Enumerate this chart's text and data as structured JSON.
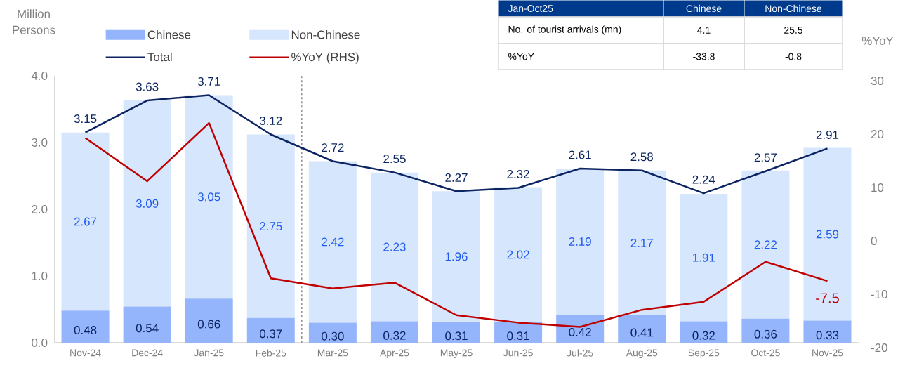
{
  "chart_data": {
    "type": "bar",
    "stacked": true,
    "ylabel": "Million Persons",
    "y2label": "%YoY",
    "categories": [
      "Nov-24",
      "Dec-24",
      "Jan-25",
      "Feb-25",
      "Mar-25",
      "Apr-25",
      "May-25",
      "Jun-25",
      "Jul-25",
      "Aug-25",
      "Sep-25",
      "Oct-25",
      "Nov-25"
    ],
    "series": [
      {
        "name": "Chinese",
        "color": "#94b4fb",
        "values": [
          0.48,
          0.54,
          0.66,
          0.37,
          0.3,
          0.32,
          0.31,
          0.31,
          0.42,
          0.41,
          0.32,
          0.36,
          0.33
        ],
        "value_labels": [
          "0.48",
          "0.54",
          "0.66",
          "0.37",
          "0.30",
          "0.32",
          "0.31",
          "0.31",
          "0.42",
          "0.41",
          "0.32",
          "0.36",
          "0.33"
        ]
      },
      {
        "name": "Non-Chinese",
        "color": "#d6e6fd",
        "values": [
          2.67,
          3.09,
          3.05,
          2.75,
          2.42,
          2.23,
          1.96,
          2.02,
          2.19,
          2.17,
          1.91,
          2.22,
          2.59
        ],
        "value_labels": [
          "2.67",
          "3.09",
          "3.05",
          "2.75",
          "2.42",
          "2.23",
          "1.96",
          "2.02",
          "2.19",
          "2.17",
          "1.91",
          "2.22",
          "2.59"
        ]
      },
      {
        "name": "Total",
        "type": "line",
        "color": "#0c2461",
        "values": [
          3.15,
          3.63,
          3.71,
          3.12,
          2.72,
          2.55,
          2.27,
          2.32,
          2.61,
          2.58,
          2.24,
          2.57,
          2.91
        ],
        "value_labels": [
          "3.15",
          "3.63",
          "3.71",
          "3.12",
          "2.72",
          "2.55",
          "2.27",
          "2.32",
          "2.61",
          "2.58",
          "2.24",
          "2.57",
          "2.91"
        ]
      },
      {
        "name": "%YoY (RHS)",
        "type": "line",
        "axis": "y2",
        "color": "#c00000",
        "values": [
          19.3,
          11.2,
          22.1,
          -7.0,
          -8.9,
          -7.8,
          -13.9,
          -15.3,
          -16.1,
          -12.9,
          -11.4,
          -3.9,
          -7.5
        ],
        "value_labels": [
          null,
          null,
          null,
          null,
          null,
          null,
          null,
          null,
          null,
          null,
          null,
          null,
          "-7.5"
        ]
      }
    ],
    "ylim": [
      0,
      4
    ],
    "yticks": [
      {
        "value": 0,
        "label": "0.0"
      },
      {
        "value": 1,
        "label": "1.0"
      },
      {
        "value": 2,
        "label": "2.0"
      },
      {
        "value": 3,
        "label": "3.0"
      },
      {
        "value": 4,
        "label": "4.0"
      }
    ],
    "y2lim": [
      -20,
      30
    ],
    "y2ticks": [
      -20,
      -10,
      0,
      10,
      20,
      30
    ],
    "legend": "top",
    "annotations": [
      "Jan-Oct25",
      "Chinese",
      "Non-Chinese",
      "No. of tourist arrivals (mn)",
      "4.1",
      "25.5",
      "%YoY",
      "-33.8",
      "-0.8"
    ]
  }
}
